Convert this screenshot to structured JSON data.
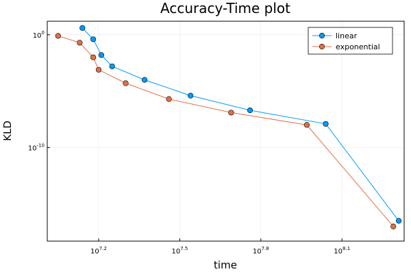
{
  "chart_data": {
    "type": "scatter",
    "title": "Accuracy-Time plot",
    "xlabel": "time",
    "ylabel": "KLD",
    "x_scale": "log10",
    "y_scale": "log10",
    "x_log_range": [
      7.01,
      8.33
    ],
    "y_log_range": [
      -18.3,
      1.2
    ],
    "x_ticks": [
      {
        "base": "10",
        "exp": "7.2",
        "log": 7.2
      },
      {
        "base": "10",
        "exp": "7.5",
        "log": 7.5
      },
      {
        "base": "10",
        "exp": "7.8",
        "log": 7.8
      },
      {
        "base": "10",
        "exp": "8.1",
        "log": 8.1
      }
    ],
    "y_ticks": [
      {
        "base": "10",
        "exp": "0",
        "log": 0
      },
      {
        "base": "10",
        "exp": "-10",
        "log": -10
      }
    ],
    "grid": true,
    "legend_position": "top-right",
    "series": [
      {
        "name": "linear",
        "color": "#009af9",
        "log_x": [
          7.14,
          7.18,
          7.21,
          7.25,
          7.37,
          7.54,
          7.76,
          8.04,
          8.31
        ],
        "log_y": [
          0.6,
          -0.4,
          -1.8,
          -2.8,
          -4.0,
          -5.4,
          -6.7,
          -7.9,
          -16.5
        ]
      },
      {
        "name": "exponential",
        "color": "#e26f46",
        "log_x": [
          7.05,
          7.13,
          7.18,
          7.2,
          7.3,
          7.46,
          7.69,
          7.97,
          8.29
        ],
        "log_y": [
          -0.1,
          -0.7,
          -2.0,
          -3.1,
          -4.3,
          -5.7,
          -6.9,
          -8.0,
          -17.0
        ]
      }
    ]
  }
}
